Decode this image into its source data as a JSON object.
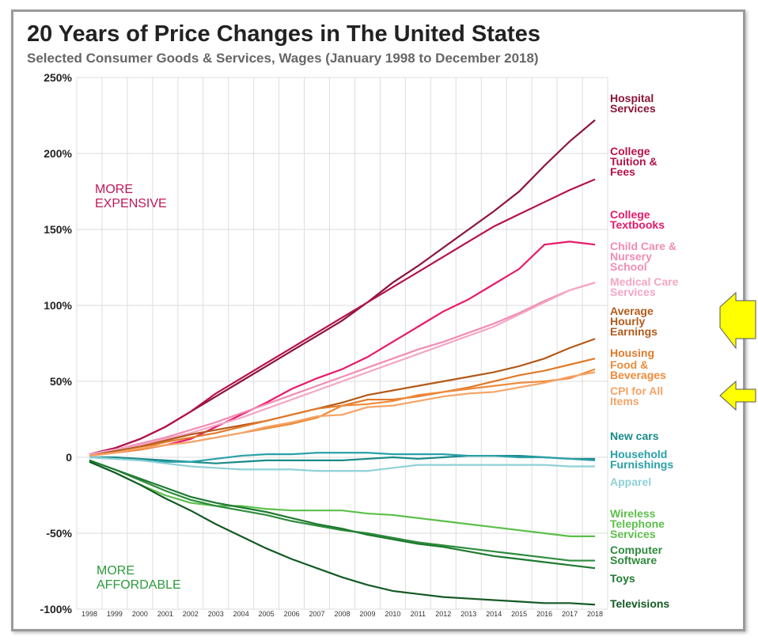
{
  "chart_data": {
    "type": "line",
    "title": "20 Years of Price Changes in The United States",
    "subtitle": "Selected Consumer Goods & Services, Wages (January 1998 to December 2018)",
    "annotations": [
      {
        "text": "MORE EXPENSIVE",
        "color": "#c0185a"
      },
      {
        "text": "MORE AFFORDABLE",
        "color": "#2e9a3c"
      }
    ],
    "x": [
      "1998",
      "1999",
      "2000",
      "2001",
      "2002",
      "2003",
      "2004",
      "2005",
      "2006",
      "2007",
      "2008",
      "2009",
      "2010",
      "2011",
      "2012",
      "2013",
      "2014",
      "2015",
      "2016",
      "2017",
      "2018"
    ],
    "ylim": [
      -100,
      250
    ],
    "yticks": [
      {
        "value": -100,
        "label": "-100%"
      },
      {
        "value": -50,
        "label": "-50%"
      },
      0,
      {
        "value": 50,
        "label": "50%"
      },
      {
        "value": 100,
        "label": "100%"
      },
      {
        "value": 150,
        "label": "150%"
      },
      {
        "value": 200,
        "label": "200%"
      },
      {
        "value": 250,
        "label": "250%"
      }
    ],
    "grid": true,
    "series": [
      {
        "name": "Hospital Services",
        "color": "#8b1538",
        "values": [
          2,
          6,
          12,
          20,
          30,
          40,
          50,
          60,
          70,
          80,
          90,
          102,
          115,
          126,
          138,
          150,
          162,
          175,
          192,
          208,
          222
        ]
      },
      {
        "name": "College Tuition & Fees",
        "color": "#b5124a",
        "values": [
          2,
          6,
          12,
          20,
          30,
          42,
          52,
          62,
          72,
          82,
          92,
          102,
          112,
          122,
          132,
          142,
          152,
          160,
          168,
          176,
          183
        ]
      },
      {
        "name": "College Textbooks",
        "color": "#e6196a",
        "values": [
          1,
          3,
          5,
          8,
          12,
          20,
          28,
          36,
          45,
          52,
          58,
          66,
          76,
          86,
          96,
          104,
          114,
          124,
          140,
          142,
          140
        ]
      },
      {
        "name": "Child Care & Nursery School",
        "color": "#f08cb4",
        "values": [
          2,
          5,
          9,
          13,
          18,
          23,
          29,
          35,
          41,
          47,
          53,
          59,
          65,
          71,
          76,
          82,
          88,
          95,
          103,
          110,
          115
        ]
      },
      {
        "name": "Medical Care Services",
        "color": "#f4a6c6",
        "values": [
          2,
          5,
          8,
          12,
          16,
          21,
          26,
          32,
          38,
          44,
          50,
          56,
          62,
          68,
          74,
          80,
          86,
          94,
          102,
          110,
          115
        ]
      },
      {
        "name": "Average Hourly Earnings",
        "color": "#b35a1a",
        "values": [
          1,
          4,
          7,
          11,
          15,
          18,
          21,
          24,
          28,
          32,
          36,
          41,
          44,
          47,
          50,
          53,
          56,
          60,
          65,
          72,
          78
        ]
      },
      {
        "name": "Housing",
        "color": "#e07a2a",
        "values": [
          1,
          3,
          6,
          10,
          13,
          16,
          20,
          24,
          28,
          32,
          34,
          38,
          38,
          40,
          43,
          46,
          50,
          54,
          57,
          61,
          65
        ]
      },
      {
        "name": "Food & Beverages",
        "color": "#ee8a3a",
        "values": [
          1,
          3,
          5,
          8,
          10,
          13,
          16,
          19,
          22,
          26,
          34,
          35,
          37,
          41,
          43,
          45,
          47,
          49,
          50,
          52,
          58
        ]
      },
      {
        "name": "CPI for All Items",
        "color": "#f4a468",
        "values": [
          1,
          3,
          6,
          8,
          10,
          13,
          16,
          20,
          23,
          27,
          28,
          33,
          34,
          37,
          40,
          42,
          43,
          46,
          49,
          53,
          56
        ]
      },
      {
        "name": "New cars",
        "color": "#1a8a8a",
        "values": [
          0,
          0,
          -1,
          -2,
          -3,
          -4,
          -3,
          -2,
          -2,
          -2,
          -2,
          -1,
          0,
          -1,
          0,
          1,
          1,
          1,
          0,
          -1,
          -1
        ]
      },
      {
        "name": "Household Furnishings",
        "color": "#2aa0a8",
        "values": [
          0,
          -1,
          -2,
          -3,
          -3,
          -1,
          1,
          2,
          2,
          3,
          3,
          3,
          2,
          2,
          2,
          1,
          1,
          0,
          0,
          -1,
          -2
        ]
      },
      {
        "name": "Apparel",
        "color": "#8fd0d8",
        "values": [
          0,
          -1,
          -2,
          -4,
          -6,
          -7,
          -8,
          -8,
          -8,
          -9,
          -9,
          -9,
          -7,
          -5,
          -5,
          -5,
          -5,
          -5,
          -5,
          -6,
          -6
        ]
      },
      {
        "name": "Wireless Telephone Services",
        "color": "#5cbf4a",
        "values": [
          -3,
          -10,
          -18,
          -25,
          -30,
          -32,
          -32,
          -34,
          -35,
          -35,
          -35,
          -37,
          -38,
          -40,
          -42,
          -44,
          -46,
          -48,
          -50,
          -52,
          -52
        ]
      },
      {
        "name": "Computer Software",
        "color": "#2e8b3c",
        "values": [
          -2,
          -8,
          -15,
          -22,
          -28,
          -32,
          -35,
          -38,
          -42,
          -45,
          -48,
          -50,
          -53,
          -56,
          -58,
          -60,
          -62,
          -64,
          -66,
          -68,
          -68
        ]
      },
      {
        "name": "Toys",
        "color": "#1e7a30",
        "values": [
          -2,
          -8,
          -14,
          -20,
          -26,
          -30,
          -33,
          -36,
          -40,
          -44,
          -47,
          -51,
          -54,
          -57,
          -59,
          -62,
          -65,
          -67,
          -69,
          -71,
          -73
        ]
      },
      {
        "name": "Televisions",
        "color": "#145a24",
        "values": [
          -3,
          -10,
          -18,
          -27,
          -35,
          -44,
          -52,
          -60,
          -67,
          -73,
          -79,
          -84,
          -88,
          -90,
          -92,
          -93,
          -94,
          -95,
          -96,
          -96,
          -97
        ]
      }
    ]
  }
}
